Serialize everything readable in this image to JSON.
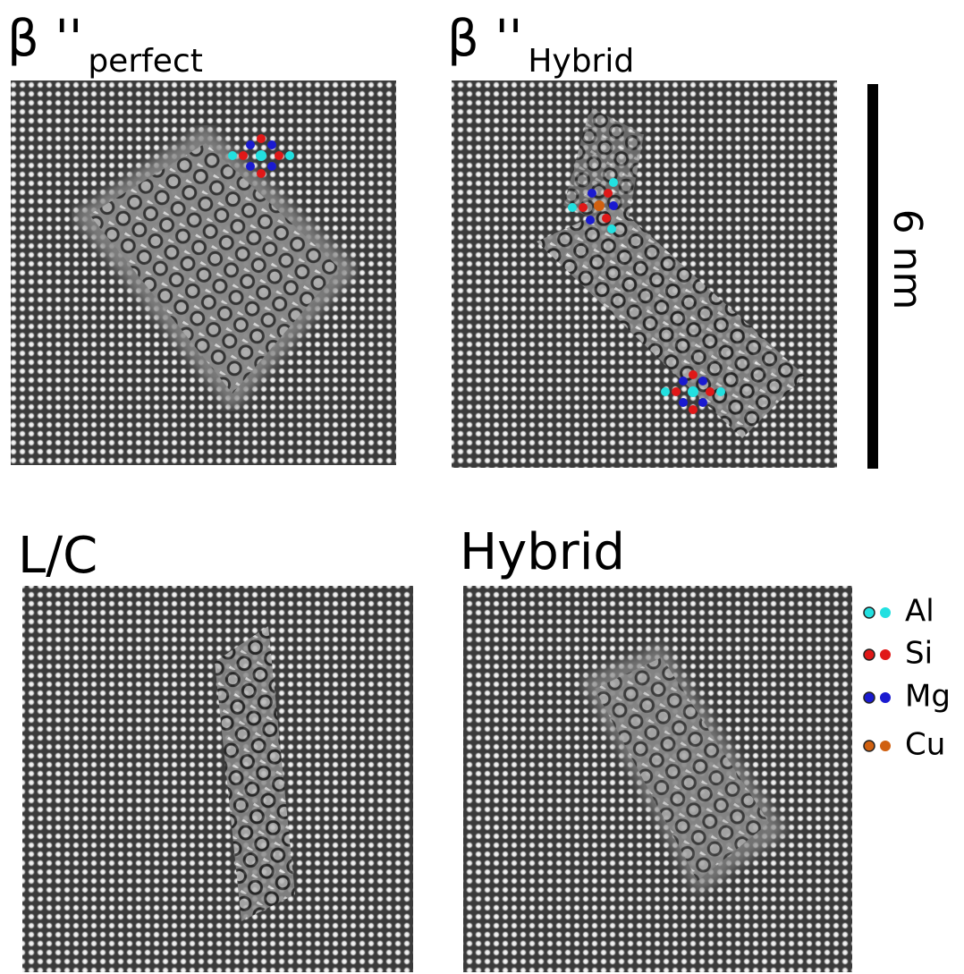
{
  "panels": [
    {
      "title": "β ''",
      "subscript": "perfect"
    },
    {
      "title": "β ''",
      "subscript": "Hybrid"
    },
    {
      "title": "L/C"
    },
    {
      "title": "Hybrid"
    }
  ],
  "scale_bar": {
    "label": "6 nm"
  },
  "legend": [
    {
      "label": "Al",
      "color": "#22e0e0"
    },
    {
      "label": "Si",
      "color": "#e01818"
    },
    {
      "label": "Mg",
      "color": "#1a1ad0"
    },
    {
      "label": "Cu",
      "color": "#d06010"
    }
  ]
}
